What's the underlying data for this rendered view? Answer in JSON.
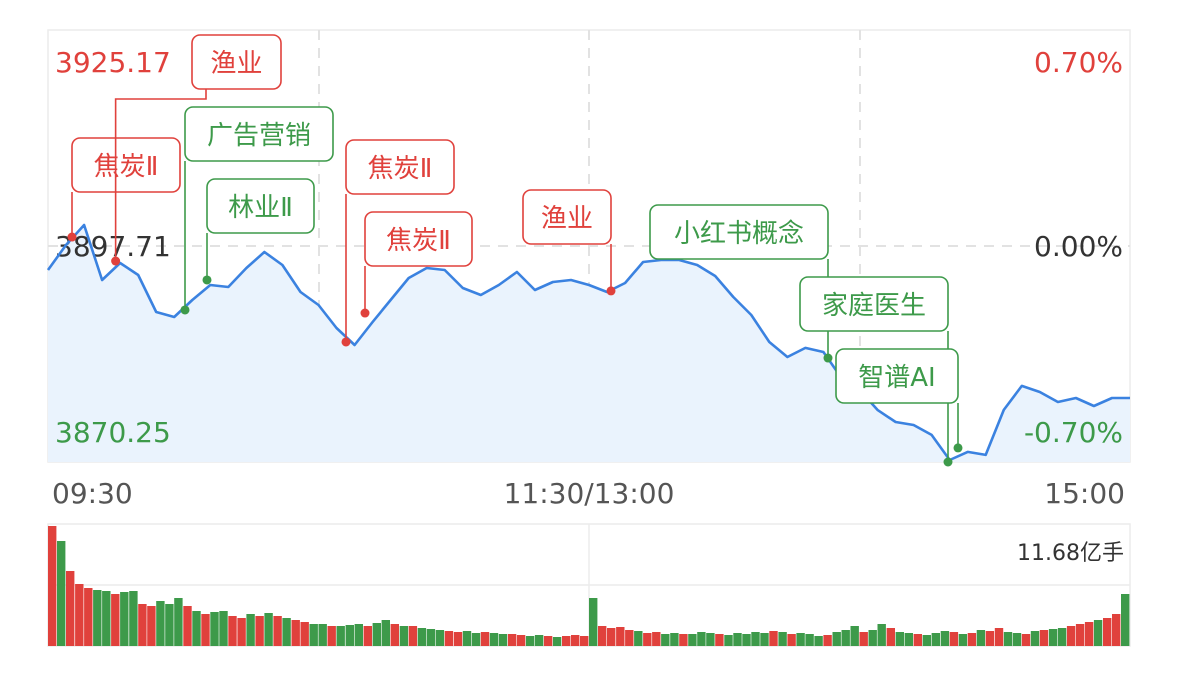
{
  "chart_data": [
    {
      "type": "line",
      "title": "",
      "ylim": [
        3870.25,
        3925.17
      ],
      "y_labels_left": [
        "3925.17",
        "3897.71",
        "3870.25"
      ],
      "y_labels_right": [
        "0.70%",
        "0.00%",
        "-0.70%"
      ],
      "x_labels": [
        "09:30",
        "11:30/13:00",
        "15:00"
      ],
      "grid": true,
      "area_fill": true,
      "times": [
        "09:30",
        "09:34",
        "09:38",
        "09:42",
        "09:46",
        "09:50",
        "09:54",
        "09:58",
        "10:02",
        "10:06",
        "10:10",
        "10:14",
        "10:18",
        "10:22",
        "10:26",
        "10:30",
        "10:34",
        "10:38",
        "10:42",
        "10:46",
        "10:50",
        "10:54",
        "10:58",
        "11:02",
        "11:06",
        "11:10",
        "11:14",
        "11:18",
        "11:22",
        "11:26",
        "11:30",
        "13:04",
        "13:08",
        "13:12",
        "13:16",
        "13:20",
        "13:24",
        "13:28",
        "13:32",
        "13:36",
        "13:40",
        "13:44",
        "13:48",
        "13:52",
        "13:56",
        "14:00",
        "14:04",
        "14:08",
        "14:12",
        "14:16",
        "14:20",
        "14:24",
        "14:28",
        "14:32",
        "14:36",
        "14:40",
        "14:44",
        "14:48",
        "14:52",
        "14:56",
        "15:00"
      ],
      "values": [
        3894.66,
        3897.84,
        3900.38,
        3893.39,
        3895.55,
        3894.02,
        3889.32,
        3888.69,
        3890.85,
        3892.75,
        3892.5,
        3894.91,
        3896.95,
        3895.3,
        3891.86,
        3890.21,
        3887.29,
        3885.13,
        3888.05,
        3890.85,
        3893.64,
        3894.91,
        3894.66,
        3892.37,
        3891.48,
        3892.75,
        3894.41,
        3892.12,
        3893.13,
        3893.39,
        3892.75,
        3891.86,
        3893.01,
        3895.68,
        3895.93,
        3895.93,
        3895.3,
        3893.9,
        3891.23,
        3888.94,
        3885.51,
        3883.6,
        3884.75,
        3884.24,
        3880.93,
        3879.41,
        3876.87,
        3875.34,
        3874.96,
        3873.69,
        3870.51,
        3871.53,
        3871.15,
        3876.87,
        3879.92,
        3879.15,
        3877.88,
        3878.39,
        3877.37,
        3878.39,
        3878.39
      ],
      "annotations": [
        {
          "label": "焦炭Ⅱ",
          "time": "09:36",
          "price": 3898.85,
          "direction": "up"
        },
        {
          "label": "渔业",
          "time": "09:45",
          "price": 3895.8,
          "direction": "up"
        },
        {
          "label": "广告营销",
          "time": "10:00",
          "price": 3889.58,
          "direction": "down"
        },
        {
          "label": "林业Ⅱ",
          "time": "10:05",
          "price": 3893.39,
          "direction": "down"
        },
        {
          "label": "焦炭Ⅱ",
          "time": "10:36",
          "price": 3885.51,
          "direction": "up"
        },
        {
          "label": "焦炭Ⅱ",
          "time": "10:40",
          "price": 3889.19,
          "direction": "up"
        },
        {
          "label": "渔业",
          "time": "13:05",
          "price": 3892.0,
          "direction": "up"
        },
        {
          "label": "小红书概念",
          "time": "13:53",
          "price": 3883.47,
          "direction": "down"
        },
        {
          "label": "家庭医生",
          "time": "14:20",
          "price": 3870.25,
          "direction": "down"
        },
        {
          "label": "智谱AI",
          "time": "14:22",
          "price": 3872.04,
          "direction": "down"
        }
      ]
    },
    {
      "type": "bar",
      "max_label": "11.68亿手",
      "values": [
        120,
        105,
        75,
        62,
        58,
        56,
        55,
        52,
        54,
        55,
        42,
        40,
        45,
        42,
        48,
        40,
        35,
        32,
        34,
        35,
        30,
        28,
        32,
        30,
        33,
        30,
        28,
        26,
        24,
        22,
        22,
        20,
        20,
        21,
        22,
        20,
        23,
        26,
        22,
        20,
        20,
        18,
        17,
        16,
        15,
        14,
        15,
        13,
        14,
        13,
        12,
        12,
        11,
        10,
        11,
        10,
        9,
        10,
        11,
        10,
        48,
        20,
        18,
        19,
        16,
        15,
        13,
        14,
        12,
        13,
        12,
        12,
        14,
        13,
        12,
        11,
        13,
        12,
        14,
        13,
        15,
        14,
        12,
        13,
        12,
        10,
        11,
        14,
        16,
        20,
        14,
        16,
        22,
        18,
        14,
        13,
        12,
        11,
        13,
        15,
        14,
        12,
        13,
        16,
        15,
        18,
        14,
        13,
        12,
        15,
        16,
        17,
        18,
        20,
        22,
        24,
        26,
        28,
        32,
        52
      ],
      "directions": "rgrrrggrggrrgggrgrggrrgrgrgrrggrgggrggrgrgggrrggrggrrggrgrrrgrrrrgrrggrgggrgggggrgrgggrgggrggrggrgggrgrgrrggrgrggrrrgrrg",
      "ylim": [
        0,
        122
      ]
    }
  ],
  "colors": {
    "up": "#e0413c",
    "down": "#3d9a4a",
    "line": "#3b82e0",
    "fill": "#eaf3fd",
    "neutral": "#333333",
    "axis": "#555555"
  }
}
